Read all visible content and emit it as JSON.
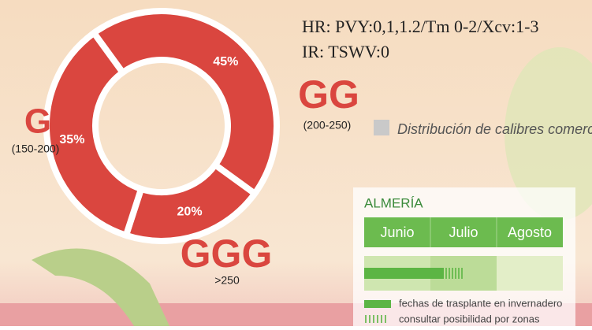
{
  "chart_data": {
    "type": "pie",
    "title": "Distribución de calibres comerciales",
    "categories": [
      "GG",
      "GGG",
      "G"
    ],
    "annotations": [
      "(200-250)",
      ">250",
      "(150-200)"
    ],
    "values": [
      45,
      20,
      35
    ],
    "value_labels": [
      "45%",
      "20%",
      "35%"
    ],
    "color": "#da463f",
    "legend_color": "#c9c9c9"
  },
  "header": {
    "hr": "HR: PVY:0,1,1.2/Tm 0-2/Xcv:1-3",
    "ir": "IR:  TSWV:0"
  },
  "calendar": {
    "region": "ALMERÍA",
    "months": [
      "Junio",
      "Julio",
      "Agosto"
    ],
    "legend": [
      "fechas de trasplante en invernadero",
      "consultar posibilidad por zonas"
    ]
  }
}
